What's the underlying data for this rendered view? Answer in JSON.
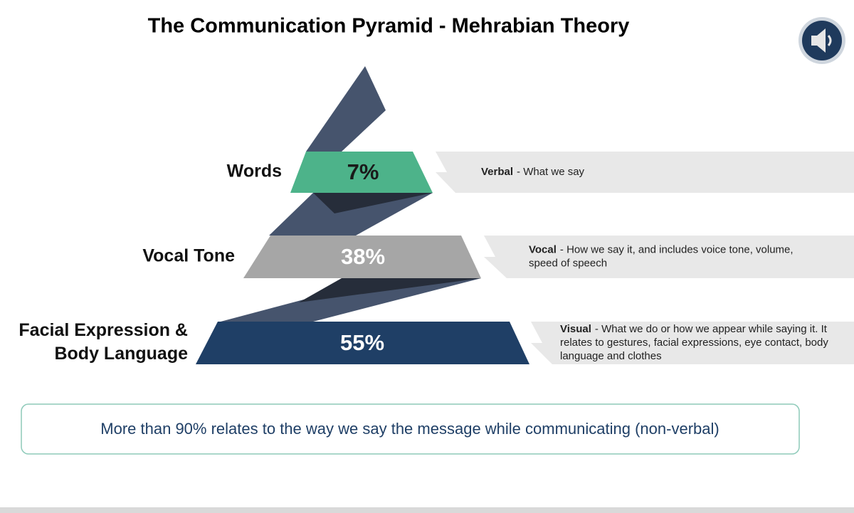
{
  "title": "The Communication Pyramid - Mehrabian Theory",
  "levels": [
    {
      "label_lines": [
        "Words"
      ],
      "percent": "7%",
      "desc_bold": "Verbal",
      "desc_lines": [
        "- What we say"
      ]
    },
    {
      "label_lines": [
        "Vocal Tone"
      ],
      "percent": "38%",
      "desc_bold": "Vocal",
      "desc_lines": [
        "- How we say it, and includes voice tone, volume,",
        "speed of speech"
      ]
    },
    {
      "label_lines": [
        "Facial Expression &",
        "Body Language"
      ],
      "percent": "55%",
      "desc_bold": "Visual",
      "desc_lines": [
        "- What we do or how we appear while saying it. It",
        "relates to gestures, facial expressions, eye contact, body",
        "language and clothes"
      ]
    }
  ],
  "note": "More than 90% relates to the way we say the message while communicating (non-verbal)"
}
